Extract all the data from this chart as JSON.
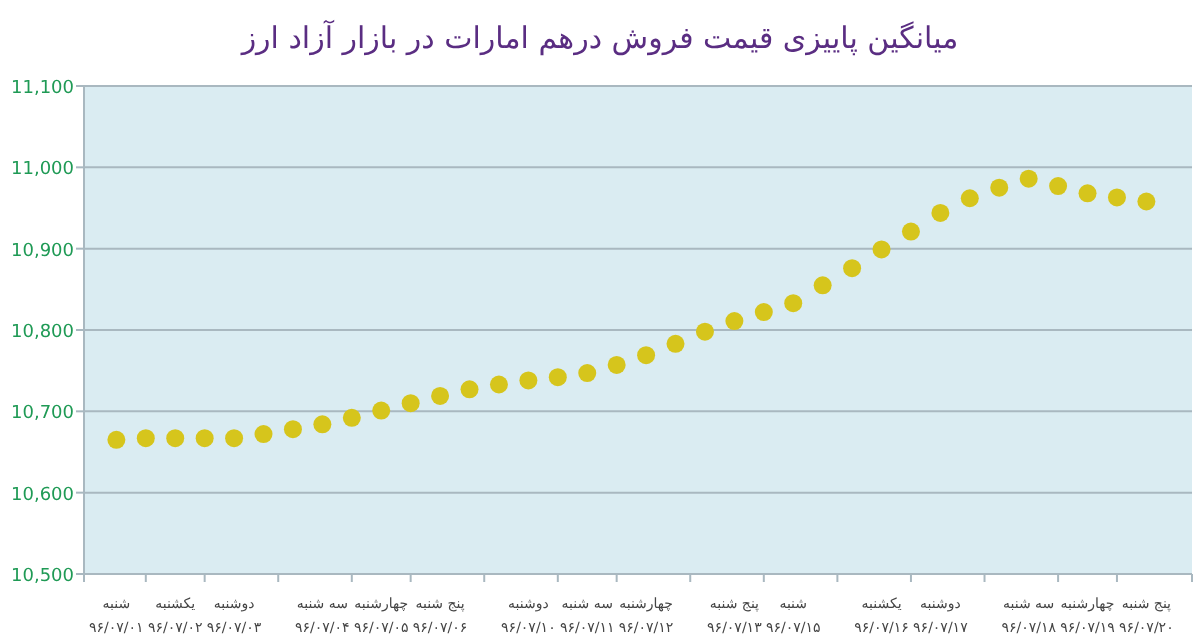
{
  "chart_data": {
    "type": "scatter",
    "title": "میانگین پاییزی قیمت فروش درهم امارات در بازار آزاد ارز",
    "categories": [
      "شنبه\n۹۶/۰۷/۰۱",
      null,
      "یکشنبه\n۹۶/۰۷/۰۲",
      null,
      "دوشنبه\n۹۶/۰۷/۰۳",
      null,
      null,
      "سه شنبه\n۹۶/۰۷/۰۴",
      null,
      "چهارشنبه\n۹۶/۰۷/۰۵",
      null,
      "پنج شنبه\n۹۶/۰۷/۰۶",
      null,
      null,
      "دوشنبه\n۹۶/۰۷/۱۰",
      null,
      "سه شنبه\n۹۶/۰۷/۱۱",
      null,
      "چهارشنبه\n۹۶/۰۷/۱۲",
      null,
      null,
      "پنج شنبه\n۹۶/۰۷/۱۳",
      null,
      "شنبه\n۹۶/۰۷/۱۵",
      null,
      null,
      "یکشنبه\n۹۶/۰۷/۱۶",
      null,
      "دوشنبه\n۹۶/۰۷/۱۷",
      null,
      null,
      "سه شنبه\n۹۶/۰۷/۱۸",
      null,
      "چهارشنبه\n۹۶/۰۷/۱۹",
      null,
      "پنج شنبه\n۹۶/۰۷/۲۰"
    ],
    "ylim": [
      10500,
      11100
    ],
    "yticks": [
      {
        "value": 10500,
        "label": "10,500"
      },
      {
        "value": 10600,
        "label": "10,600"
      },
      {
        "value": 10700,
        "label": "10,700"
      },
      {
        "value": 10800,
        "label": "10,800"
      },
      {
        "value": 10900,
        "label": "10,900"
      },
      {
        "value": 11000,
        "label": "11,000"
      },
      {
        "value": 11100,
        "label": "11,100"
      }
    ],
    "grid": "y",
    "marker": "circle",
    "series": [
      {
        "color": "#d6c51c",
        "values": [
          10665,
          10667,
          10667,
          10667,
          10667,
          10672,
          10678,
          10684,
          10692,
          10701,
          10710,
          10719,
          10727,
          10733,
          10738,
          10742,
          10747,
          10757,
          10769,
          10783,
          10798,
          10811,
          10822,
          10833,
          10855,
          10876,
          10899,
          10921,
          10944,
          10962,
          10975,
          10986,
          10977,
          10968,
          10963,
          10958
        ]
      }
    ]
  }
}
